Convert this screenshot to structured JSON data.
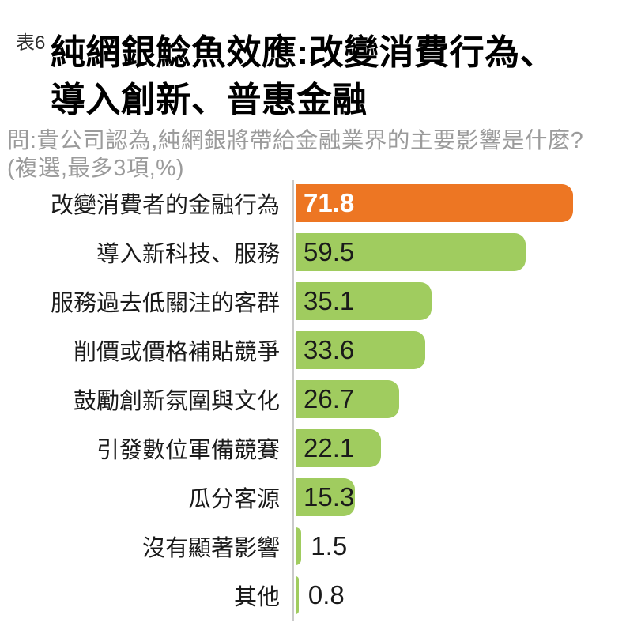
{
  "page": {
    "table_label": "表6",
    "title_line1": "純網銀鯰魚效應:改變消費行為、",
    "title_line2": "導入創新、普惠金融",
    "question": "問:貴公司認為,純網銀將帶給金融業界的主要影響是什麼?(複選,最多3項,%)"
  },
  "colors": {
    "highlight_bar": "#ED7623",
    "bar": "#A0CC5F",
    "axis_line": "#CACACA",
    "question_text": "#9B9B9B",
    "value_on_highlight": "#FFFFFF",
    "value_text": "#1A1A1A"
  },
  "chart_data": {
    "type": "bar",
    "orientation": "horizontal",
    "title": "純網銀鯰魚效應:改變消費行為、導入創新、普惠金融",
    "subtitle": "問:貴公司認為,純網銀將帶給金融業界的主要影響是什麼?(複選,最多3項,%)",
    "unit": "%",
    "categories": [
      "改變消費者的金融行為",
      "導入新科技、服務",
      "服務過去低關注的客群",
      "削價或價格補貼競爭",
      "鼓勵創新氛圍與文化",
      "引發數位軍備競賽",
      "瓜分客源",
      "沒有顯著影響",
      "其他"
    ],
    "values": [
      71.8,
      59.5,
      35.1,
      33.6,
      26.7,
      22.1,
      15.3,
      1.5,
      0.8
    ],
    "value_labels": [
      "71.8",
      "59.5",
      "35.1",
      "33.6",
      "26.7",
      "22.1",
      "15.3",
      "1.5",
      "0.8"
    ],
    "highlight_index": 0,
    "xlim": [
      0,
      81.4
    ],
    "grid": false,
    "legend": false
  }
}
